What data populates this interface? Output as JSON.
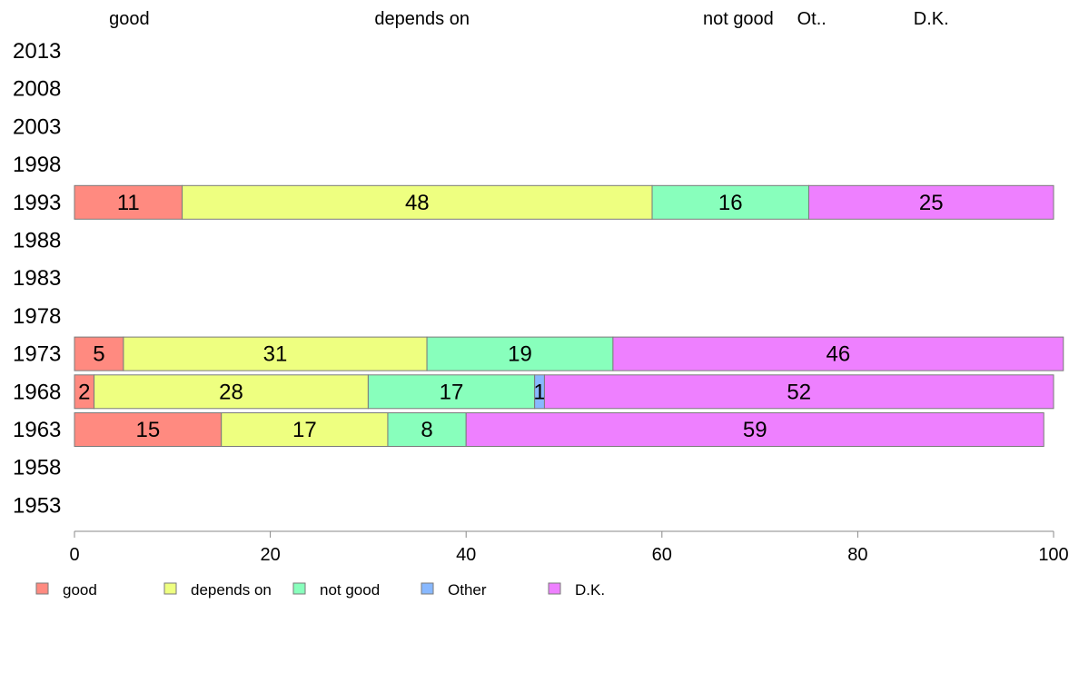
{
  "chart_data": {
    "type": "bar",
    "orientation": "horizontal",
    "stacked": true,
    "categories": [
      "2013",
      "2008",
      "2003",
      "1998",
      "1993",
      "1988",
      "1983",
      "1978",
      "1973",
      "1968",
      "1963",
      "1958",
      "1953"
    ],
    "series": [
      {
        "name": "good",
        "color": "#FF8A80",
        "values": [
          null,
          null,
          null,
          null,
          11,
          null,
          null,
          null,
          5,
          2,
          15,
          null,
          null
        ]
      },
      {
        "name": "depends on",
        "color": "#EEFF80",
        "values": [
          null,
          null,
          null,
          null,
          48,
          null,
          null,
          null,
          31,
          28,
          17,
          null,
          null
        ]
      },
      {
        "name": "not good",
        "color": "#88FFBC",
        "values": [
          null,
          null,
          null,
          null,
          16,
          null,
          null,
          null,
          19,
          17,
          8,
          null,
          null
        ]
      },
      {
        "name": "Other",
        "color": "#88B8FF",
        "values": [
          null,
          null,
          null,
          null,
          0,
          null,
          null,
          null,
          0,
          1,
          0,
          null,
          null
        ]
      },
      {
        "name": "D.K.",
        "color": "#EE80FF",
        "values": [
          null,
          null,
          null,
          null,
          25,
          null,
          null,
          null,
          46,
          52,
          59,
          null,
          null
        ]
      }
    ],
    "top_labels": [
      {
        "text": "good",
        "at": 5.6
      },
      {
        "text": "depends on",
        "at": 35.5
      },
      {
        "text": "not good",
        "at": 67.8
      },
      {
        "text": "Ot..",
        "at": 75.3
      },
      {
        "text": "D.K.",
        "at": 87.5
      }
    ],
    "xlim": [
      0,
      100
    ],
    "xticks": [
      0,
      20,
      40,
      60,
      80,
      100
    ],
    "xlabel": "",
    "ylabel": "",
    "grid": false,
    "legend": {
      "position": "bottom",
      "items": [
        "good",
        "depends on",
        "not good",
        "Other",
        "D.K."
      ]
    }
  }
}
